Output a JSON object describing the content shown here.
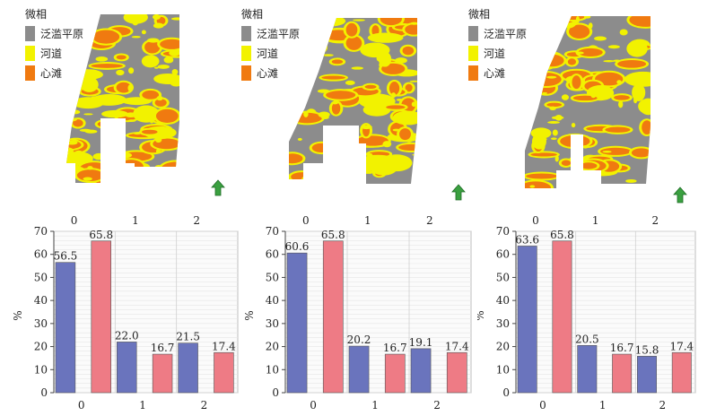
{
  "legend": {
    "title": "微相",
    "items": [
      {
        "label": "泛滥平原",
        "color": "#8c8c8c"
      },
      {
        "label": "河道",
        "color": "#f2f200"
      },
      {
        "label": "心滩",
        "color": "#f07a10"
      }
    ]
  },
  "colors": {
    "series_a": "#6a74bd",
    "series_b": "#ee7b85",
    "north_arrow": "#3aa040"
  },
  "icons": [
    "north-arrow-icon"
  ],
  "chart_data": [
    {
      "type": "bar",
      "categories": [
        "0",
        "1",
        "2"
      ],
      "top_axis_labels": [
        "0",
        "1",
        "2"
      ],
      "ylabel": "%",
      "ylim": [
        0,
        70
      ],
      "yticks": [
        "0",
        "10",
        "20",
        "30",
        "40",
        "50",
        "60",
        "70"
      ],
      "grid": true,
      "series": [
        {
          "values": [
            56.5,
            22.0,
            21.5
          ],
          "labels": [
            "56.5",
            "22.0",
            "21.5"
          ]
        },
        {
          "values": [
            65.8,
            16.7,
            17.4
          ],
          "labels": [
            "65.8",
            "16.7",
            "17.4"
          ]
        }
      ]
    },
    {
      "type": "bar",
      "categories": [
        "0",
        "1",
        "2"
      ],
      "top_axis_labels": [
        "0",
        "1",
        "2"
      ],
      "ylabel": "%",
      "ylim": [
        0,
        70
      ],
      "yticks": [
        "0",
        "10",
        "20",
        "30",
        "40",
        "50",
        "60",
        "70"
      ],
      "grid": true,
      "series": [
        {
          "values": [
            60.6,
            20.2,
            19.1
          ],
          "labels": [
            "60.6",
            "20.2",
            "19.1"
          ]
        },
        {
          "values": [
            65.8,
            16.7,
            17.4
          ],
          "labels": [
            "65.8",
            "16.7",
            "17.4"
          ]
        }
      ]
    },
    {
      "type": "bar",
      "categories": [
        "0",
        "1",
        "2"
      ],
      "top_axis_labels": [
        "0",
        "1",
        "2"
      ],
      "ylabel": "%",
      "ylim": [
        0,
        70
      ],
      "yticks": [
        "0",
        "10",
        "20",
        "30",
        "40",
        "50",
        "60",
        "70"
      ],
      "grid": true,
      "series": [
        {
          "values": [
            63.6,
            20.5,
            15.8
          ],
          "labels": [
            "63.6",
            "20.5",
            "15.8"
          ]
        },
        {
          "values": [
            65.8,
            16.7,
            17.4
          ],
          "labels": [
            "65.8",
            "16.7",
            "17.4"
          ]
        }
      ]
    }
  ]
}
